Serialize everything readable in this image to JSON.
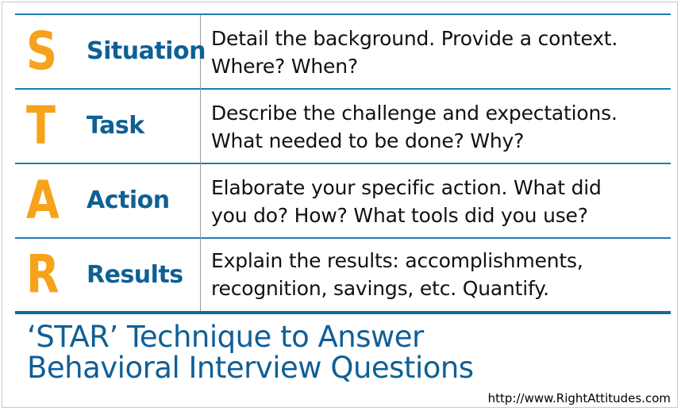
{
  "rows": [
    {
      "letter": "S",
      "word": "Situation",
      "line1": "Detail the background.  Provide a context.",
      "line2": "Where?  When?"
    },
    {
      "letter": "T",
      "word": "Task",
      "line1": "Describe the challenge and expectations.",
      "line2": "What needed to be done?  Why?"
    },
    {
      "letter": "A",
      "word": "Action",
      "line1": "Elaborate your specific action.  What did",
      "line2": "you do?  How?  What tools did you use?"
    },
    {
      "letter": "R",
      "word": "Results",
      "line1": "Explain the results: accomplishments,",
      "line2": "recognition, savings, etc.  Quantify."
    }
  ],
  "title": {
    "line1": "‘STAR’ Technique to Answer",
    "line2": "Behavioral Interview Questions"
  },
  "source_url": "http://www.RightAttitudes.com",
  "colors": {
    "letter": "#f7a21b",
    "heading": "#0f5f95",
    "rule": "#1d7cb5"
  }
}
